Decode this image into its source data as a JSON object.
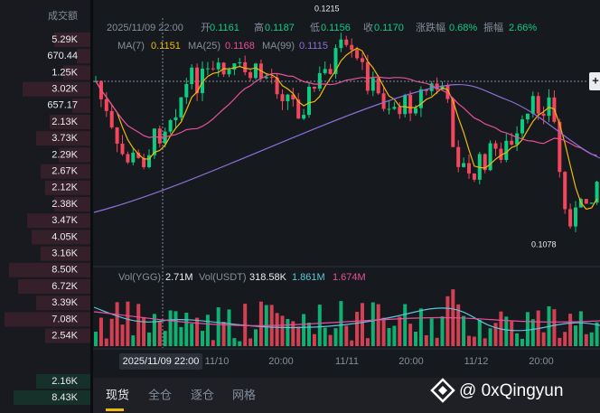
{
  "order_book": {
    "header": "成交额",
    "values": [
      "5.29K",
      "670.44",
      "1.25K",
      "3.02K",
      "657.17",
      "2.13K",
      "3.73K",
      "2.29K",
      "2.67K",
      "2.12K",
      "2.38K",
      "3.47K",
      "4.05K",
      "3.16K",
      "8.50K",
      "6.72K",
      "3.39K",
      "7.08K",
      "2.54K"
    ],
    "lower_values": [
      "2.16K",
      "8.43K"
    ]
  },
  "info": [
    {
      "label": "2025/11/09 22:00"
    },
    {
      "label": "开"
    },
    {
      "label": "0.1161",
      "color": "#0ecb81"
    },
    {
      "label": "高"
    },
    {
      "label": "0.1187",
      "color": "#0ecb81"
    },
    {
      "label": "低"
    },
    {
      "label": "0.1156",
      "color": "#0ecb81"
    },
    {
      "label": "收"
    },
    {
      "label": "0.1170",
      "color": "#0ecb81"
    },
    {
      "label": "涨跌幅"
    },
    {
      "label": "0.68%",
      "color": "#0ecb81"
    },
    {
      "label": "振幅"
    },
    {
      "label": "2.66%",
      "color": "#0ecb81"
    }
  ],
  "ma": [
    {
      "name": "MA(7)",
      "value": "0.1151",
      "color": "#f0b90b"
    },
    {
      "name": "MA(25)",
      "value": "0.1168",
      "color": "#e84f9b"
    },
    {
      "name": "MA(99)",
      "value": "0.1115",
      "color": "#8d6fd8"
    }
  ],
  "price_marks": {
    "high": "0.1215",
    "low": "0.1078"
  },
  "volume": {
    "base_label": "Vol(YGG)",
    "base": "2.71M",
    "quote_label": "Vol(USDT)",
    "quote": "318.58K",
    "ma1": "1.861M",
    "ma2": "1.674M"
  },
  "x_axis": [
    "11/10",
    "20:00",
    "11/11",
    "20:00",
    "11/12",
    "20:00"
  ],
  "crosshair_time": "2025/11/09 22:00",
  "bottom_tabs": [
    "现货",
    "全仓",
    "逐仓",
    "网格"
  ],
  "watermark": "@ 0xQingyun"
}
